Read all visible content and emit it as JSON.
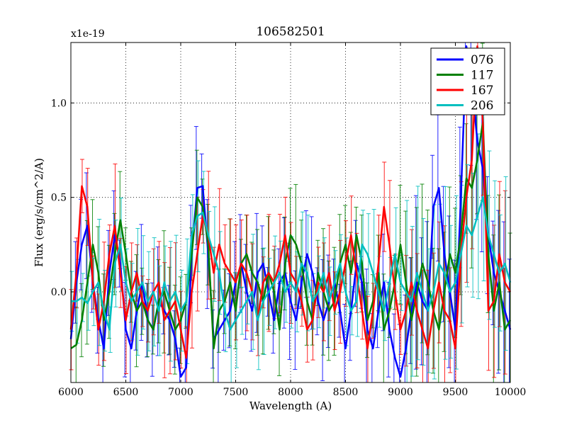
{
  "chart_data": {
    "type": "line",
    "title": "106582501",
    "xlabel": "Wavelength (A)",
    "ylabel": "Flux (erg/s/cm^2/A)",
    "offset_label": "x1e-19",
    "xlim": [
      6000,
      10000
    ],
    "ylim": [
      -0.48,
      1.32
    ],
    "x_ticks": [
      6000,
      6500,
      7000,
      7500,
      8000,
      8500,
      9000,
      9500,
      10000
    ],
    "x_tick_labels": [
      "6000",
      "6500",
      "7000",
      "7500",
      "8000",
      "8500",
      "9000",
      "9500",
      "10000"
    ],
    "y_ticks": [
      0.0,
      0.5,
      1.0
    ],
    "y_tick_labels": [
      "0.0",
      "0.5",
      "1.0"
    ],
    "grid": true,
    "legend_position": "top-right",
    "x": [
      6000,
      6050,
      6100,
      6150,
      6200,
      6250,
      6300,
      6350,
      6400,
      6450,
      6500,
      6550,
      6600,
      6650,
      6700,
      6750,
      6800,
      6850,
      6900,
      6950,
      7000,
      7050,
      7100,
      7150,
      7200,
      7250,
      7300,
      7350,
      7400,
      7450,
      7500,
      7550,
      7600,
      7650,
      7700,
      7750,
      7800,
      7850,
      7900,
      7950,
      8000,
      8050,
      8100,
      8150,
      8200,
      8250,
      8300,
      8350,
      8400,
      8450,
      8500,
      8550,
      8600,
      8650,
      8700,
      8750,
      8800,
      8850,
      8900,
      8950,
      9000,
      9050,
      9100,
      9150,
      9200,
      9250,
      9300,
      9350,
      9400,
      9450,
      9500,
      9550,
      9600,
      9650,
      9700,
      9750,
      9800,
      9850,
      9900,
      9950,
      10000
    ],
    "series": [
      {
        "name": "076",
        "color": "#0000ff",
        "values": [
          -0.25,
          0.05,
          0.25,
          0.35,
          0.05,
          -0.15,
          -0.3,
          0.1,
          0.3,
          0.15,
          -0.2,
          -0.3,
          -0.1,
          0.05,
          -0.15,
          -0.2,
          -0.05,
          -0.1,
          -0.15,
          -0.25,
          -0.45,
          -0.4,
          0.2,
          0.55,
          0.56,
          0.2,
          -0.25,
          -0.2,
          -0.15,
          -0.1,
          0.05,
          0.15,
          0.0,
          -0.1,
          0.1,
          0.15,
          0.0,
          -0.15,
          0.05,
          0.1,
          -0.05,
          -0.15,
          0.05,
          0.2,
          0.1,
          -0.05,
          -0.15,
          -0.05,
          0.05,
          -0.1,
          -0.3,
          -0.1,
          0.15,
          0.05,
          -0.2,
          -0.3,
          -0.1,
          0.05,
          -0.2,
          -0.35,
          -0.45,
          -0.3,
          -0.1,
          0.05,
          -0.05,
          -0.1,
          0.45,
          0.55,
          0.2,
          0.0,
          -0.2,
          0.5,
          1.3,
          1.1,
          0.8,
          0.65,
          0.3,
          0.1,
          0.0,
          -0.1,
          -0.2
        ]
      },
      {
        "name": "117",
        "color": "#008000",
        "values": [
          -0.3,
          -0.28,
          -0.15,
          0.05,
          0.25,
          0.1,
          -0.15,
          0.0,
          0.2,
          0.38,
          0.2,
          0.0,
          -0.1,
          -0.05,
          -0.15,
          -0.2,
          -0.05,
          0.0,
          -0.1,
          -0.2,
          -0.15,
          -0.05,
          0.2,
          0.5,
          0.45,
          0.25,
          -0.3,
          -0.1,
          -0.05,
          0.05,
          -0.1,
          0.15,
          0.2,
          0.1,
          0.05,
          -0.05,
          0.1,
          0.0,
          -0.2,
          0.15,
          0.3,
          0.25,
          0.15,
          -0.05,
          -0.15,
          0.1,
          0.0,
          -0.1,
          -0.05,
          0.15,
          0.25,
          0.1,
          0.3,
          0.15,
          -0.15,
          -0.05,
          0.1,
          -0.2,
          -0.1,
          0.05,
          0.25,
          0.05,
          -0.15,
          0.0,
          0.15,
          0.05,
          -0.1,
          -0.2,
          0.0,
          0.2,
          0.1,
          0.3,
          0.6,
          0.55,
          0.7,
          0.9,
          0.2,
          -0.1,
          0.05,
          -0.2,
          -0.15
        ]
      },
      {
        "name": "167",
        "color": "#ff0000",
        "values": [
          -0.2,
          0.1,
          0.56,
          0.45,
          0.05,
          -0.2,
          -0.05,
          0.2,
          0.35,
          0.1,
          -0.15,
          0.0,
          0.1,
          -0.05,
          -0.1,
          0.0,
          0.05,
          -0.15,
          -0.1,
          -0.05,
          -0.2,
          -0.35,
          0.0,
          0.2,
          0.4,
          0.3,
          0.1,
          0.25,
          0.15,
          0.1,
          0.05,
          0.15,
          0.1,
          0.0,
          -0.15,
          0.05,
          0.1,
          0.05,
          0.15,
          0.3,
          0.1,
          0.05,
          -0.05,
          -0.2,
          -0.15,
          0.05,
          0.0,
          0.1,
          -0.1,
          0.0,
          0.15,
          0.3,
          0.1,
          -0.1,
          -0.3,
          -0.1,
          0.15,
          0.45,
          0.25,
          0.0,
          -0.2,
          -0.1,
          0.05,
          -0.1,
          -0.2,
          -0.3,
          -0.1,
          0.05,
          -0.1,
          -0.15,
          -0.3,
          0.2,
          0.5,
          0.7,
          1.3,
          0.9,
          -0.1,
          -0.05,
          0.2,
          0.05,
          0.0
        ]
      },
      {
        "name": "206",
        "color": "#00bfbf",
        "values": [
          -0.05,
          -0.05,
          -0.03,
          -0.06,
          0.0,
          0.05,
          -0.1,
          -0.2,
          0.15,
          0.25,
          0.05,
          -0.05,
          0.0,
          0.05,
          -0.05,
          0.0,
          -0.1,
          0.05,
          -0.05,
          0.0,
          -0.1,
          -0.05,
          0.3,
          0.4,
          0.42,
          0.3,
          0.2,
          0.1,
          -0.1,
          -0.2,
          -0.15,
          -0.1,
          -0.05,
          0.0,
          -0.15,
          -0.05,
          0.0,
          0.05,
          0.1,
          0.0,
          0.05,
          0.0,
          0.15,
          0.1,
          -0.05,
          0.0,
          0.1,
          -0.05,
          0.05,
          0.15,
          0.0,
          -0.1,
          -0.05,
          0.25,
          0.2,
          0.1,
          0.0,
          -0.1,
          0.05,
          0.2,
          0.05,
          0.0,
          -0.05,
          0.1,
          0.0,
          -0.1,
          0.0,
          0.15,
          0.1,
          0.0,
          0.05,
          0.2,
          0.35,
          0.3,
          0.4,
          0.5,
          0.3,
          0.2,
          0.1,
          0.15,
          0.05
        ]
      }
    ]
  }
}
